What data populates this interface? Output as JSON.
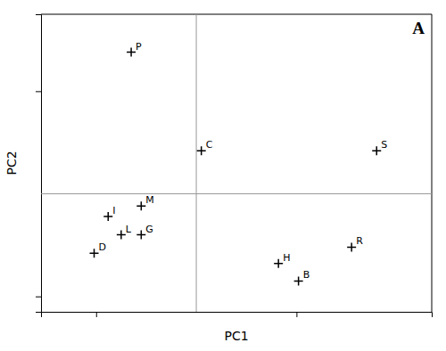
{
  "chart_data": {
    "type": "scatter",
    "x": [
      1.8,
      0.05,
      -0.65,
      1.55,
      0.82,
      1.02,
      -0.88,
      -0.55,
      -0.75,
      -0.55,
      -1.02
    ],
    "values": [
      0.42,
      0.42,
      1.38,
      -0.52,
      -0.68,
      -0.85,
      -0.22,
      -0.12,
      -0.4,
      -0.4,
      -0.58
    ],
    "labels": [
      "S",
      "C",
      "P",
      "R",
      "H",
      "B",
      "I",
      "M",
      "L",
      "G",
      "D"
    ],
    "x_label": "PC1",
    "y_label": "PC2",
    "annotations": [
      {
        "text": "A"
      }
    ],
    "xlim": [
      -1.55,
      2.35
    ],
    "ylim": [
      -1.15,
      1.75
    ],
    "xticks": [
      -1.0,
      1.0
    ],
    "yticks": [
      -1.0,
      1.0
    ],
    "tick_labels": false,
    "grid": false,
    "marker": "plus",
    "color": "black"
  }
}
